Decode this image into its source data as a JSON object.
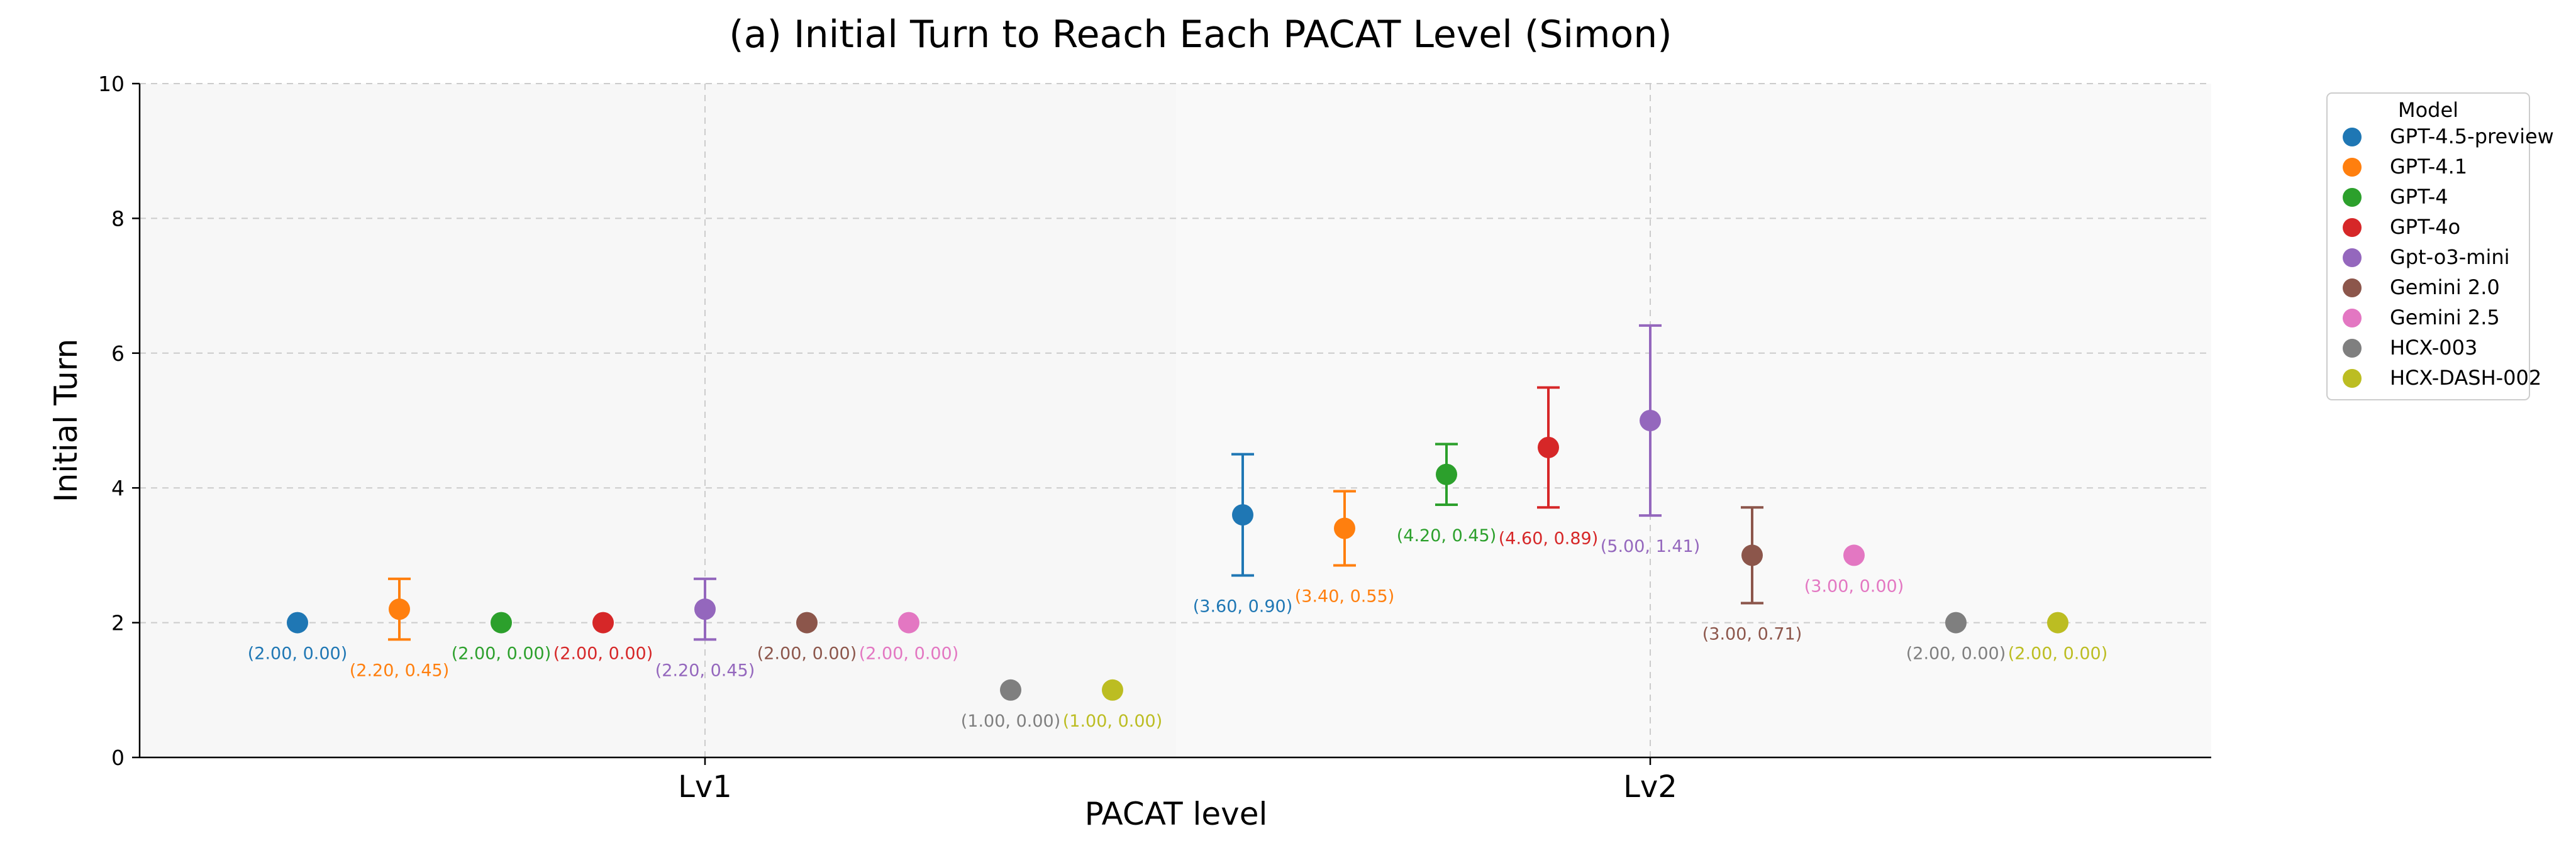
{
  "chart_data": {
    "type": "scatter",
    "title": "(a) Initial Turn to Reach Each PACAT Level  (Simon)",
    "xlabel": "PACAT level",
    "ylabel": "Initial Turn",
    "categories": [
      "Lv1",
      "Lv2"
    ],
    "ylim": [
      0,
      10
    ],
    "yticks": [
      "0",
      "2",
      "4",
      "6",
      "8",
      "10"
    ],
    "grid": true,
    "legend": {
      "title": "Model",
      "placement": "outside-right"
    },
    "series": [
      {
        "name": "GPT-4.5-preview",
        "color": "#1f77b4",
        "means": [
          2.0,
          3.6
        ],
        "sds": [
          0.0,
          0.9
        ],
        "labels": [
          "(2.00, 0.00)",
          "(3.60, 0.90)"
        ]
      },
      {
        "name": "GPT-4.1",
        "color": "#ff7f0e",
        "means": [
          2.2,
          3.4
        ],
        "sds": [
          0.45,
          0.55
        ],
        "labels": [
          "(2.20, 0.45)",
          "(3.40, 0.55)"
        ]
      },
      {
        "name": "GPT-4",
        "color": "#2ca02c",
        "means": [
          2.0,
          4.2
        ],
        "sds": [
          0.0,
          0.45
        ],
        "labels": [
          "(2.00, 0.00)",
          "(4.20, 0.45)"
        ]
      },
      {
        "name": "GPT-4o",
        "color": "#d62728",
        "means": [
          2.0,
          4.6
        ],
        "sds": [
          0.0,
          0.89
        ],
        "labels": [
          "(2.00, 0.00)",
          "(4.60, 0.89)"
        ]
      },
      {
        "name": "Gpt-o3-mini",
        "color": "#9467bd",
        "means": [
          2.2,
          5.0
        ],
        "sds": [
          0.45,
          1.41
        ],
        "labels": [
          "(2.20, 0.45)",
          "(5.00, 1.41)"
        ]
      },
      {
        "name": "Gemini 2.0",
        "color": "#8c564b",
        "means": [
          2.0,
          3.0
        ],
        "sds": [
          0.0,
          0.71
        ],
        "labels": [
          "(2.00, 0.00)",
          "(3.00, 0.71)"
        ]
      },
      {
        "name": "Gemini 2.5",
        "color": "#e377c2",
        "means": [
          2.0,
          3.0
        ],
        "sds": [
          0.0,
          0.0
        ],
        "labels": [
          "(2.00, 0.00)",
          "(3.00, 0.00)"
        ]
      },
      {
        "name": "HCX-003",
        "color": "#7f7f7f",
        "means": [
          1.0,
          2.0
        ],
        "sds": [
          0.0,
          0.0
        ],
        "labels": [
          "(1.00, 0.00)",
          "(2.00, 0.00)"
        ]
      },
      {
        "name": "HCX-DASH-002",
        "color": "#bcbd22",
        "means": [
          1.0,
          2.0
        ],
        "sds": [
          0.0,
          0.0
        ],
        "labels": [
          "(1.00, 0.00)",
          "(2.00, 0.00)"
        ]
      }
    ]
  }
}
